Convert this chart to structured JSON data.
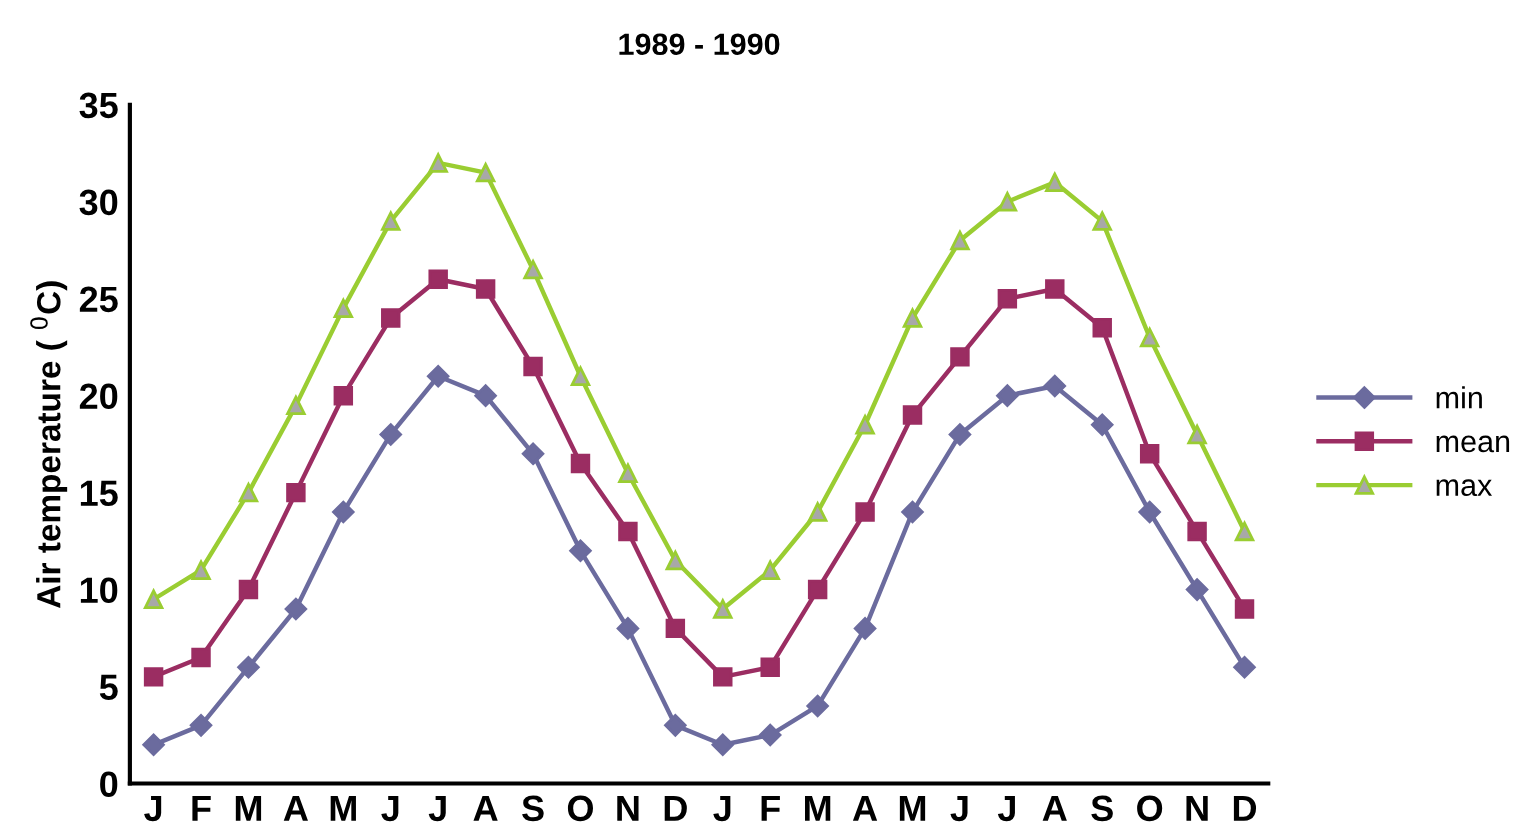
{
  "chart_data": {
    "type": "line",
    "title": "1989 - 1990",
    "ylabel": "Air temperature ( $^{0}$C)",
    "categories": [
      "J",
      "F",
      "M",
      "A",
      "M",
      "J",
      "J",
      "A",
      "S",
      "O",
      "N",
      "D",
      "J",
      "F",
      "M",
      "A",
      "M",
      "J",
      "J",
      "A",
      "S",
      "O",
      "N",
      "D"
    ],
    "series": [
      {
        "name": "min",
        "color": "#6b6b9e",
        "marker": "diamond",
        "values": [
          2,
          3,
          6,
          9,
          14,
          18,
          21,
          20,
          17,
          12,
          8,
          3,
          2,
          2.5,
          4,
          8,
          14,
          18,
          20,
          20.5,
          18.5,
          14,
          10,
          6
        ]
      },
      {
        "name": "mean",
        "color": "#9b2d62",
        "marker": "square",
        "values": [
          5.5,
          6.5,
          10,
          15,
          20,
          24,
          26,
          25.5,
          21.5,
          16.5,
          13,
          8,
          5.5,
          6,
          10,
          14,
          19,
          22,
          25,
          25.5,
          23.5,
          17,
          13,
          9
        ]
      },
      {
        "name": "max",
        "color": "#9acd32",
        "marker": "triangle",
        "values": [
          9.5,
          11,
          15,
          19.5,
          24.5,
          29,
          32,
          31.5,
          26.5,
          21,
          16,
          11.5,
          9,
          11,
          14,
          18.5,
          24,
          28,
          30,
          31,
          29,
          23,
          18,
          13
        ]
      }
    ],
    "ylim": [
      0,
      35
    ],
    "yticks": [
      0,
      5,
      10,
      15,
      20,
      25,
      30,
      35
    ],
    "grid": false,
    "legend": "right"
  }
}
